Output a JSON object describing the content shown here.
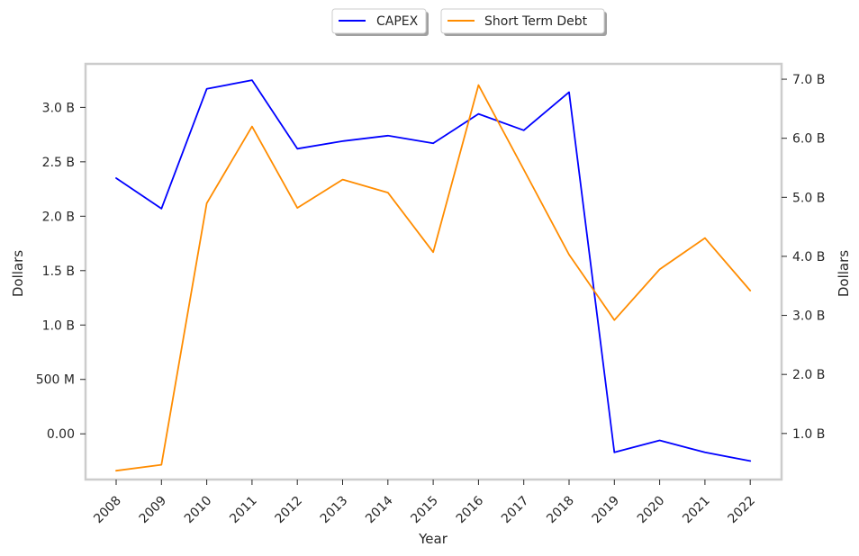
{
  "chart_data": {
    "type": "line",
    "title": "",
    "xlabel": "Year",
    "ylabel_left": "Dollars",
    "ylabel_right": "Dollars",
    "categories": [
      "2008",
      "2009",
      "2010",
      "2011",
      "2012",
      "2013",
      "2014",
      "2015",
      "2016",
      "2017",
      "2018",
      "2019",
      "2020",
      "2021",
      "2022"
    ],
    "left_axis": {
      "ylim": [
        -0.42,
        3.4
      ],
      "ticks": [
        0,
        0.5,
        1.0,
        1.5,
        2.0,
        2.5,
        3.0
      ],
      "tick_labels": [
        "0.00",
        "500 M",
        "1.0 B",
        "1.5 B",
        "2.0 B",
        "2.5 B",
        "3.0 B"
      ]
    },
    "right_axis": {
      "ylim": [
        0.22,
        7.26
      ],
      "ticks": [
        1,
        2,
        3,
        4,
        5,
        6,
        7
      ],
      "tick_labels": [
        "1.0 B",
        "2.0 B",
        "3.0 B",
        "4.0 B",
        "5.0 B",
        "6.0 B",
        "7.0 B"
      ]
    },
    "series": [
      {
        "name": "CAPEX",
        "axis": "left",
        "color": "#0000ff",
        "values": [
          2.35,
          2.07,
          3.17,
          3.25,
          2.62,
          2.69,
          2.74,
          2.67,
          2.94,
          2.79,
          3.14,
          -0.17,
          -0.06,
          -0.17,
          -0.25
        ]
      },
      {
        "name": "Short Term Debt",
        "axis": "right",
        "color": "#ff8c00",
        "values": [
          0.37,
          0.47,
          4.9,
          6.2,
          4.82,
          5.3,
          5.08,
          4.07,
          6.9,
          5.47,
          4.03,
          2.92,
          3.78,
          4.31,
          3.42
        ]
      }
    ],
    "legend": {
      "placement": "top-center"
    },
    "grid": false
  }
}
